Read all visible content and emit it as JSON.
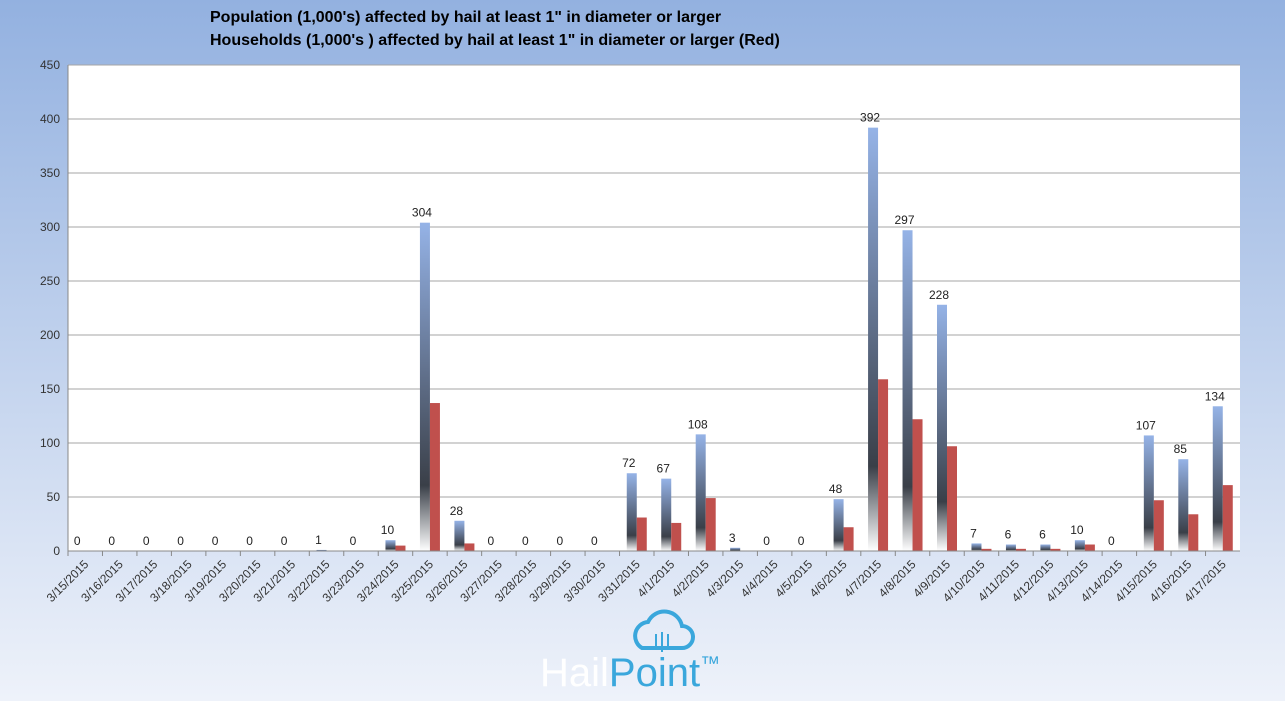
{
  "chart_data": {
    "type": "bar",
    "title": "Population (1,000's)   affected by hail at least 1\" in diameter or larger",
    "subtitle": "Households (1,000's ) affected by hail at least 1\" in diameter or larger   (Red)",
    "categories": [
      "3/15/2015",
      "3/16/2015",
      "3/17/2015",
      "3/18/2015",
      "3/19/2015",
      "3/20/2015",
      "3/21/2015",
      "3/22/2015",
      "3/23/2015",
      "3/24/2015",
      "3/25/2015",
      "3/26/2015",
      "3/27/2015",
      "3/28/2015",
      "3/29/2015",
      "3/30/2015",
      "3/31/2015",
      "4/1/2015",
      "4/2/2015",
      "4/3/2015",
      "4/4/2015",
      "4/5/2015",
      "4/6/2015",
      "4/7/2015",
      "4/8/2015",
      "4/9/2015",
      "4/10/2015",
      "4/11/2015",
      "4/12/2015",
      "4/13/2015",
      "4/14/2015",
      "4/15/2015",
      "4/16/2015",
      "4/17/2015"
    ],
    "series": [
      {
        "color": "#95b3e7",
        "data_labels": true,
        "values": [
          0,
          0,
          0,
          0,
          0,
          0,
          0,
          1,
          0,
          10,
          304,
          28,
          0,
          0,
          0,
          0,
          72,
          67,
          108,
          3,
          0,
          0,
          48,
          392,
          297,
          228,
          7,
          6,
          6,
          10,
          0,
          107,
          85,
          134
        ]
      },
      {
        "color": "#c0504d",
        "data_labels": false,
        "values": [
          0,
          0,
          0,
          0,
          0,
          0,
          0,
          0,
          0,
          5,
          137,
          7,
          0,
          0,
          0,
          0,
          31,
          26,
          49,
          0,
          0,
          0,
          22,
          159,
          122,
          97,
          2,
          2,
          2,
          6,
          0,
          47,
          34,
          61
        ]
      }
    ],
    "ylim": [
      0,
      450
    ],
    "yticks": [
      0,
      50,
      100,
      150,
      200,
      250,
      300,
      350,
      400,
      450
    ],
    "grid": true
  },
  "logo": {
    "part1": "Hail",
    "part2": "Point",
    "mark": "™"
  }
}
